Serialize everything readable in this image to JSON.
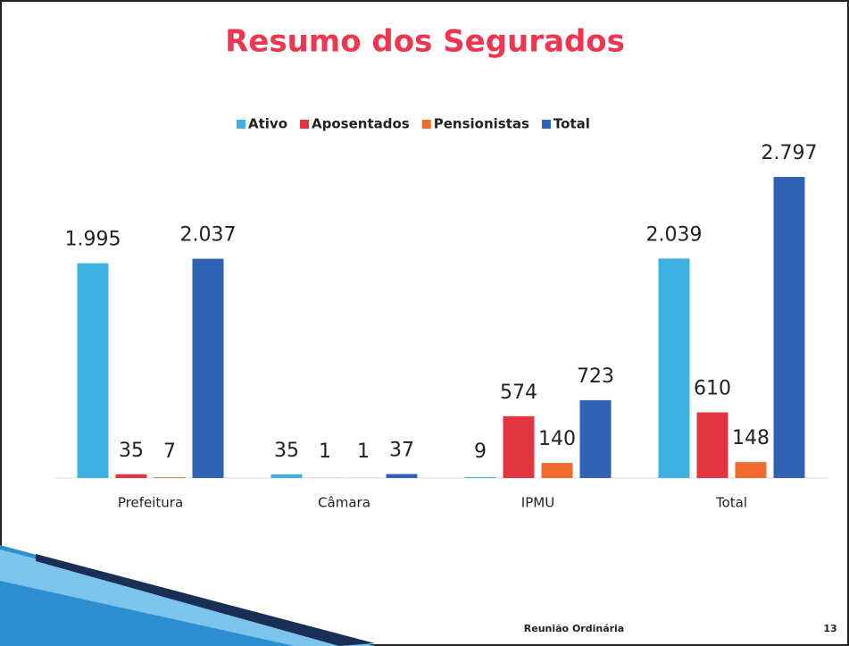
{
  "chart_data": {
    "type": "bar",
    "title": "Resumo dos Segurados",
    "categories": [
      "Prefeitura",
      "Câmara",
      "IPMU",
      "Total"
    ],
    "series": [
      {
        "name": "Ativo",
        "color": "#3fb1e3",
        "values": [
          1995,
          35,
          9,
          2039
        ],
        "value_labels": [
          "1.995",
          "35",
          "9",
          "2.039"
        ]
      },
      {
        "name": "Aposentados",
        "color": "#e2353f",
        "values": [
          35,
          1,
          574,
          610
        ]
      },
      {
        "name": "Pensionistas",
        "color": "#f26b2e",
        "values": [
          7,
          1,
          140,
          148
        ]
      },
      {
        "name": "Total",
        "color": "#2f62b3",
        "values": [
          2037,
          37,
          723,
          2797
        ],
        "value_labels": [
          "2.037",
          "37",
          "723",
          "2.797"
        ]
      }
    ],
    "legend": "top"
  },
  "footer": {
    "text": "Reunião Ordinária",
    "page": "13"
  }
}
